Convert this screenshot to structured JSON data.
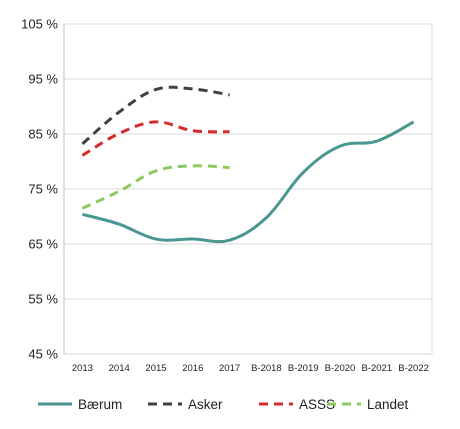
{
  "chart_data": {
    "type": "line",
    "categories": [
      "2013",
      "2014",
      "2015",
      "2016",
      "2017",
      "B-2018",
      "B-2019",
      "B-2020",
      "B-2021",
      "B-2022"
    ],
    "y_ticks": [
      "45 %",
      "55 %",
      "65 %",
      "75 %",
      "85 %",
      "95 %",
      "105 %"
    ],
    "ylim": [
      45,
      105
    ],
    "grid": "horizontal",
    "legend": "bottom",
    "series": [
      {
        "name": "Bærum",
        "color": "#4a9690",
        "dash": "solid",
        "values": [
          70.4,
          68.6,
          65.9,
          65.9,
          65.7,
          69.8,
          78.0,
          82.8,
          83.7,
          87.2
        ]
      },
      {
        "name": "Asker",
        "color": "#404040",
        "dash": "dashed",
        "values": [
          83.2,
          89.0,
          93.1,
          93.2,
          92.1,
          null,
          null,
          null,
          null,
          null
        ]
      },
      {
        "name": "ASSS",
        "color": "#d62b2b",
        "dash": "dashed",
        "values": [
          81.1,
          85.1,
          87.2,
          85.6,
          85.4,
          null,
          null,
          null,
          null,
          null
        ]
      },
      {
        "name": "Landet",
        "color": "#8ec95f",
        "dash": "dashed",
        "values": [
          71.5,
          74.6,
          78.3,
          79.2,
          78.9,
          null,
          null,
          null,
          null,
          null
        ]
      }
    ]
  }
}
